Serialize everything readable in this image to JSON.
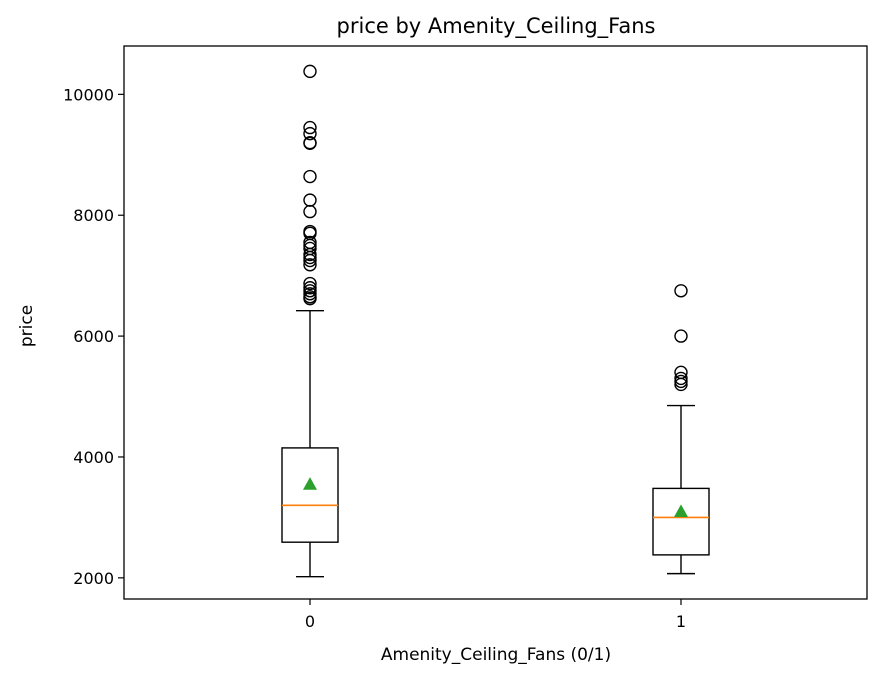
{
  "chart_data": {
    "type": "box",
    "title": "price by Amenity_Ceiling_Fans",
    "xlabel": "Amenity_Ceiling_Fans (0/1)",
    "ylabel": "price",
    "categories": [
      "0",
      "1"
    ],
    "ylim": [
      1650,
      10800
    ],
    "yticks": [
      2000,
      4000,
      6000,
      8000,
      10000
    ],
    "grid": false,
    "boxes": [
      {
        "category": "0",
        "whisker_low": 2020,
        "q1": 2590,
        "median": 3200,
        "q3": 4150,
        "whisker_high": 6420,
        "mean": 3550,
        "outliers": [
          6620,
          6650,
          6700,
          6750,
          6800,
          6870,
          7180,
          7250,
          7300,
          7350,
          7450,
          7500,
          7550,
          7700,
          7730,
          8060,
          8250,
          8640,
          9190,
          9200,
          9350,
          9450,
          10380
        ]
      },
      {
        "category": "1",
        "whisker_low": 2070,
        "q1": 2380,
        "median": 3000,
        "q3": 3480,
        "whisker_high": 4850,
        "mean": 3100,
        "outliers": [
          5200,
          5250,
          5300,
          5400,
          6000,
          6750
        ]
      }
    ],
    "colors": {
      "box": "#000000",
      "median": "#ff7f0e",
      "mean": "#2ca02c",
      "outlier": "#000000"
    }
  }
}
